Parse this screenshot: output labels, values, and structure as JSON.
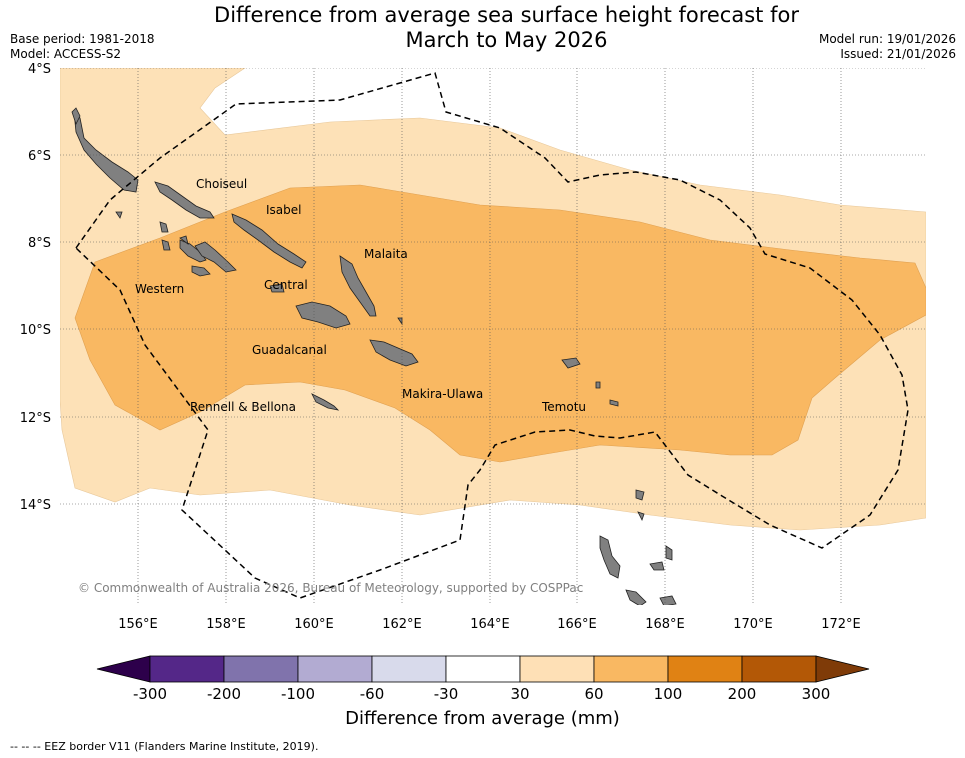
{
  "title": {
    "line1": "Difference from average sea surface height forecast for",
    "line2": "March to May 2026"
  },
  "meta_left": {
    "base_period": "Base period: 1981-2018",
    "model": "Model: ACCESS-S2"
  },
  "meta_right": {
    "model_run": "Model run: 19/01/2026",
    "issued": "Issued: 21/01/2026"
  },
  "axes": {
    "lat_labels": [
      "4°S",
      "6°S",
      "8°S",
      "10°S",
      "12°S",
      "14°S"
    ],
    "lon_labels": [
      "156°E",
      "158°E",
      "160°E",
      "162°E",
      "164°E",
      "166°E",
      "168°E",
      "170°E",
      "172°E"
    ]
  },
  "places": {
    "choiseul": "Choiseul",
    "isabel": "Isabel",
    "malaita": "Malaita",
    "western": "Western",
    "central": "Central",
    "guadalcanal": "Guadalcanal",
    "makira_ulawa": "Makira-Ulawa",
    "temotu": "Temotu",
    "rennell_bellona": "Rennell & Bellona"
  },
  "copyright": "© Commonwealth of Australia 2026, Bureau of Meteorology, supported by COSPPac",
  "colorbar": {
    "title": "Difference from average (mm)",
    "ticks": [
      "-300",
      "-200",
      "-100",
      "-60",
      "-30",
      "30",
      "60",
      "100",
      "200",
      "300"
    ],
    "colors": {
      "extend_low": "#2d004b",
      "c1": "#542788",
      "c2": "#8073ac",
      "c3": "#b2abd2",
      "c4": "#d8daeb",
      "c5": "#ffffff",
      "c6": "#fee0b6",
      "c7": "#f9b862",
      "c8": "#e08214",
      "c9": "#b35806",
      "extend_high": "#7f3b08"
    }
  },
  "legend_note": "--  --  -- EEZ border V11 (Flanders Marine Institute, 2019).",
  "colors": {
    "light_orange": "#fde1b7",
    "mid_orange": "#f9b862",
    "land": "#808080"
  }
}
